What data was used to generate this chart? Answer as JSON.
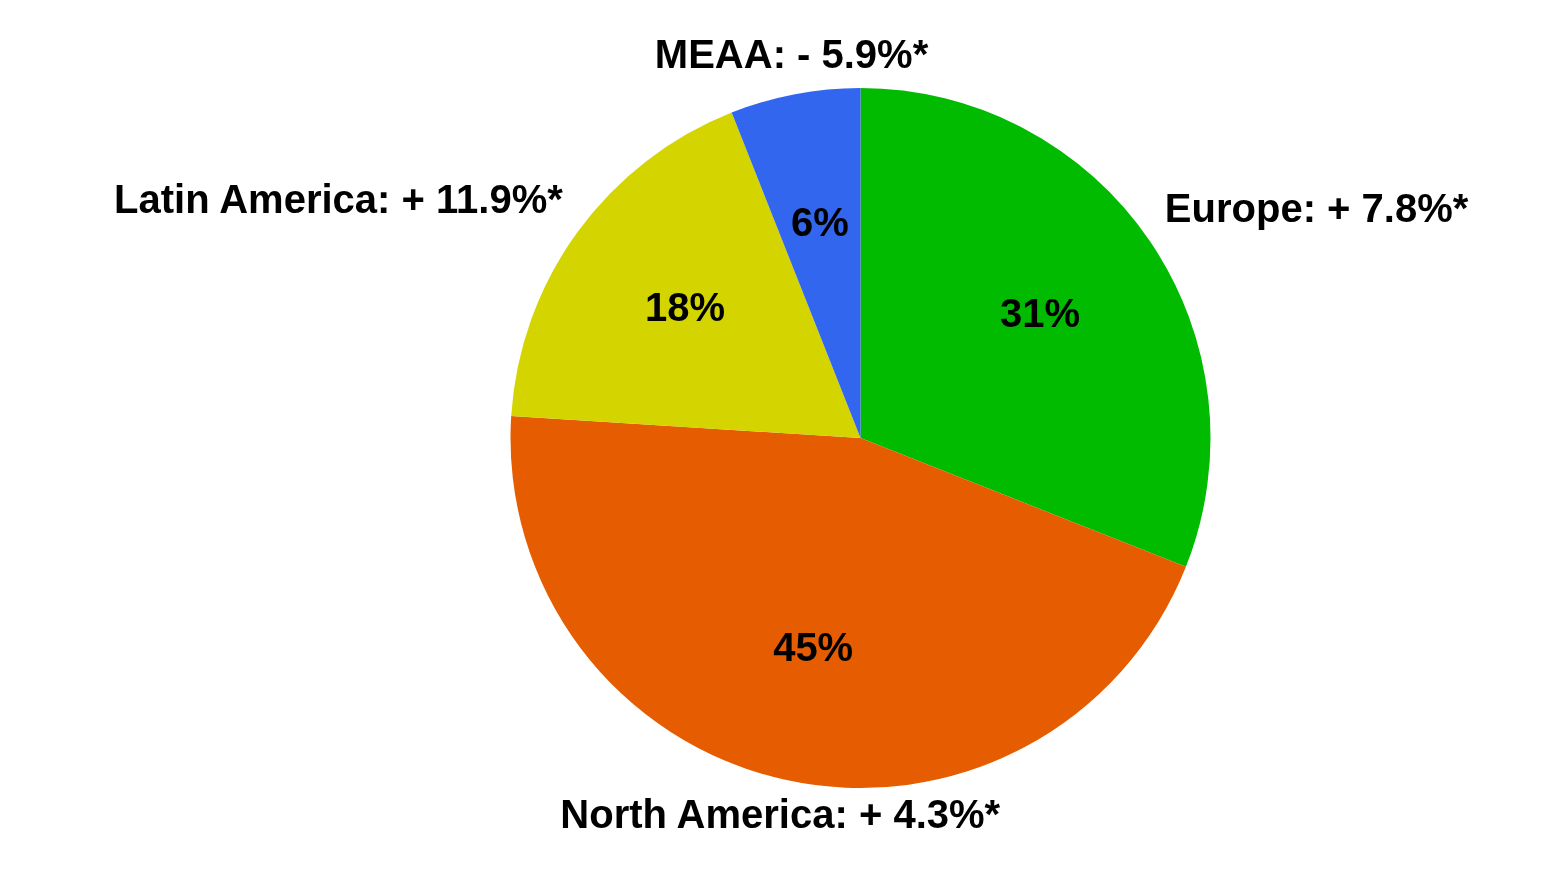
{
  "chart_data": {
    "type": "pie",
    "categories": [
      "Europe: + 7.8%*",
      "North America: + 4.3%*",
      "Latin America: + 11.9%*",
      "MEAA: - 5.9%*"
    ],
    "values": [
      31,
      45,
      18,
      6
    ],
    "value_labels": [
      "31%",
      "45%",
      "18%",
      "6%"
    ],
    "colors": [
      "#00bb00",
      "#e65c00",
      "#d4d400",
      "#3366ee"
    ],
    "legend": false
  }
}
